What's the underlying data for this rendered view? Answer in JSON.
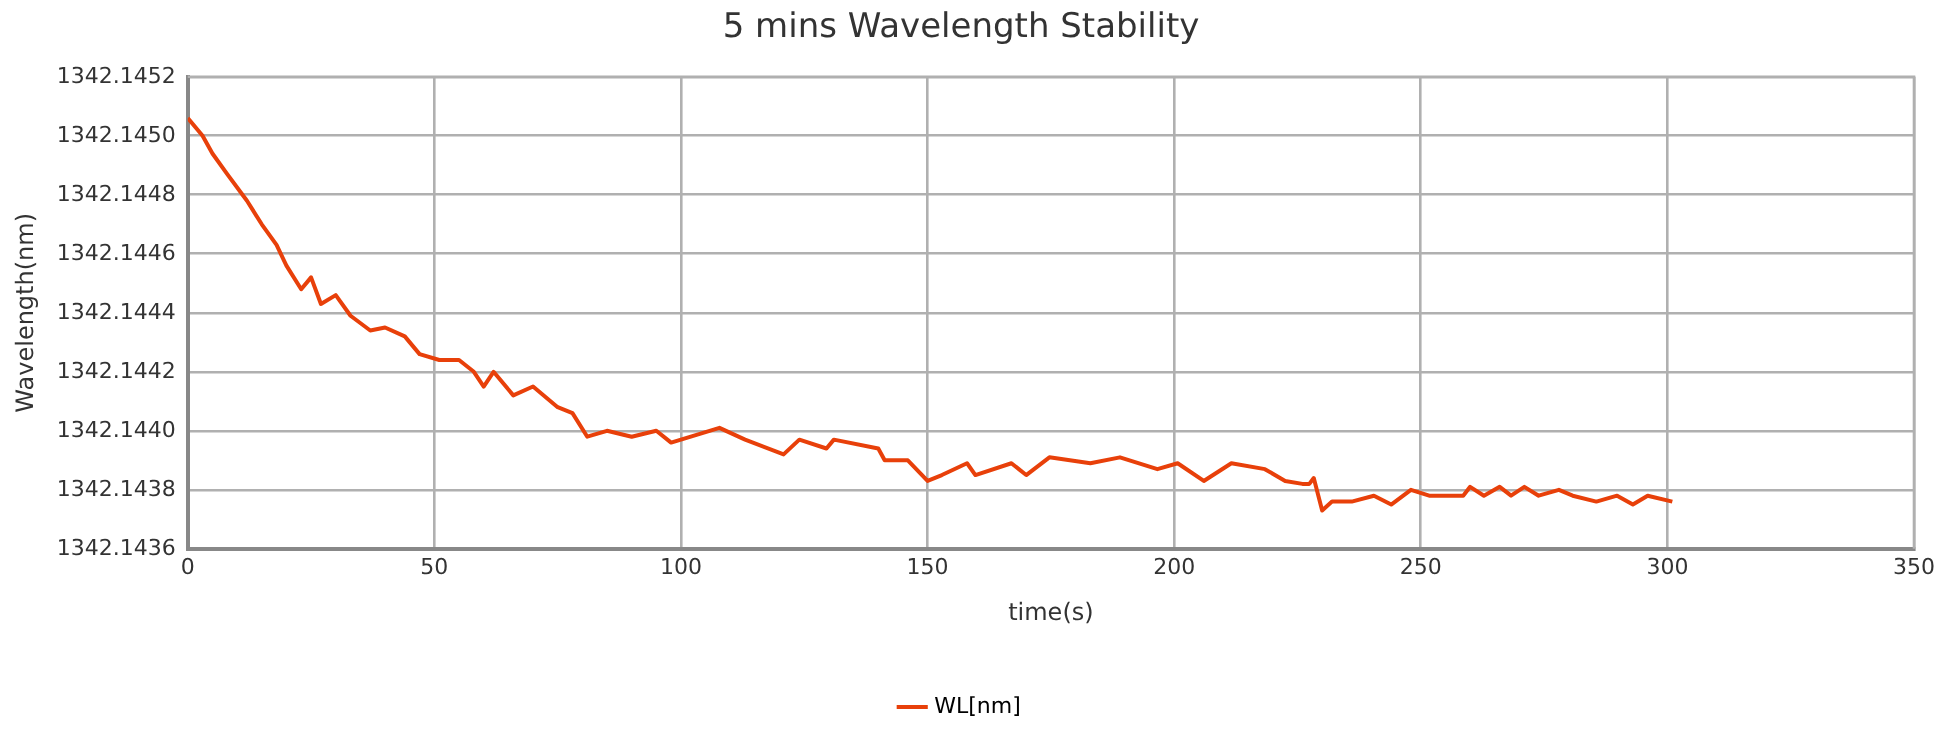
{
  "chart_data": {
    "type": "line",
    "title": "5 mins Wavelength Stability",
    "xlabel": "time(s)",
    "ylabel": "Wavelength(nm)",
    "xlim": [
      0,
      350
    ],
    "xticks": [
      0,
      50,
      100,
      150,
      200,
      250,
      300,
      350
    ],
    "ylim": [
      1342.1436,
      1342.1452
    ],
    "yticks": [
      1342.1436,
      1342.1438,
      {
        "value": 1342.144,
        "label": "1342.1440"
      },
      1342.1442,
      1342.1444,
      1342.1446,
      1342.1448,
      {
        "value": 1342.145,
        "label": "1342.1450"
      },
      1342.1452
    ],
    "grid": true,
    "legend": "bottom",
    "marker": "none",
    "line_style": "solid",
    "series": [
      {
        "name": "WL[nm]",
        "color": "#e8400a",
        "x": [
          0,
          3,
          5,
          8,
          12,
          15,
          18,
          20,
          23,
          25,
          27,
          30,
          33,
          37,
          40,
          44,
          47,
          51,
          55,
          58,
          60,
          62,
          66,
          70,
          75,
          78,
          81,
          85,
          90,
          95,
          98,
          107.8,
          113,
          120.8,
          124,
          129.5,
          131,
          140,
          141.3,
          146,
          150,
          152.9,
          158,
          159.7,
          167,
          170,
          174.7,
          183,
          189,
          196.6,
          200.7,
          206,
          211.6,
          218.4,
          222.5,
          226,
          227.4,
          228.3,
          230,
          232,
          236,
          240.5,
          244,
          248,
          251.7,
          258.6,
          260,
          262.8,
          266,
          268.3,
          271,
          273.9,
          278,
          280.8,
          285.6,
          289.8,
          293,
          296,
          301
        ],
        "values": [
          1342.14506,
          1342.145,
          1342.14494,
          1342.14487,
          1342.14478,
          1342.1447,
          1342.14463,
          1342.14456,
          1342.14448,
          1342.14452,
          1342.14443,
          1342.14446,
          1342.14439,
          1342.14434,
          1342.14435,
          1342.14432,
          1342.14426,
          1342.14424,
          1342.14424,
          1342.1442,
          1342.14415,
          1342.1442,
          1342.14412,
          1342.14415,
          1342.14408,
          1342.14406,
          1342.14398,
          1342.144,
          1342.14398,
          1342.144,
          1342.14396,
          1342.14401,
          1342.14397,
          1342.14392,
          1342.14397,
          1342.14394,
          1342.14397,
          1342.14394,
          1342.1439,
          1342.1439,
          1342.14383,
          1342.14385,
          1342.14389,
          1342.14385,
          1342.14389,
          1342.14385,
          1342.14391,
          1342.14389,
          1342.14391,
          1342.14387,
          1342.14389,
          1342.14383,
          1342.14389,
          1342.14387,
          1342.14383,
          1342.14382,
          1342.14382,
          1342.14384,
          1342.14373,
          1342.14376,
          1342.14376,
          1342.14378,
          1342.14375,
          1342.1438,
          1342.14378,
          1342.14378,
          1342.14381,
          1342.14378,
          1342.14381,
          1342.14378,
          1342.14381,
          1342.14378,
          1342.1438,
          1342.14378,
          1342.14376,
          1342.14378,
          1342.14375,
          1342.14378,
          1342.14376
        ]
      }
    ]
  }
}
